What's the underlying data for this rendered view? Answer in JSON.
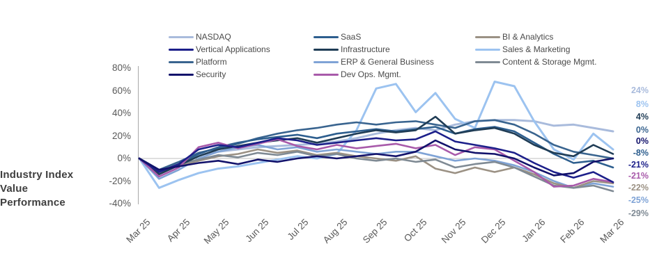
{
  "title": {
    "text": "Industry Index Value Performance"
  },
  "legend": {
    "columns": [
      [
        "NASDAQ",
        "Vertical Applications",
        "Platform",
        "Security"
      ],
      [
        "SaaS",
        "Infrastructure",
        "ERP & General Business",
        "Dev Ops. Mgmt."
      ],
      [
        "BI & Analytics",
        "Sales & Marketing",
        "Content & Storage Mgmt."
      ]
    ]
  },
  "chart_data": {
    "type": "line",
    "title": "Industry Index Value Performance",
    "xlabel": "",
    "ylabel": "",
    "x_unit": "months since Mar 25 (values sampled every 0.5 month)",
    "x_tick_labels": [
      "Mar 25",
      "Apr 25",
      "May 25",
      "Jun 25",
      "Jul 25",
      "Aug 25",
      "Sep 25",
      "Oct 25",
      "Nov 25",
      "Dec 25",
      "Jan 26",
      "Feb 26",
      "Mar 26"
    ],
    "y_ticks": [
      80,
      60,
      40,
      20,
      0,
      -20,
      -40
    ],
    "y_tick_labels": [
      "80%",
      "60%",
      "40%",
      "20%",
      "0%",
      "-20%",
      "-40%"
    ],
    "ylim": [
      -40,
      80
    ],
    "grid": "horizontal zero-line only",
    "legend_position": "top",
    "axis_color": "#a8a8a8",
    "zero_line_color": "#bfbfbf",
    "series": [
      {
        "name": "NASDAQ",
        "slug": "nasdaq",
        "color": "#a9bbdc",
        "end_label": "24%",
        "values": [
          0,
          -13,
          -4,
          3,
          6,
          8,
          10,
          11,
          12,
          13,
          15,
          18,
          22,
          25,
          27,
          25,
          30,
          33,
          34,
          34,
          33,
          29,
          30,
          27,
          24
        ]
      },
      {
        "name": "Vertical Applications",
        "slug": "vertical-applications",
        "color": "#1c1f8a",
        "end_label": "-21%",
        "values": [
          0,
          -12,
          -5,
          8,
          12,
          10,
          14,
          18,
          16,
          12,
          14,
          16,
          18,
          16,
          17,
          24,
          15,
          12,
          9,
          5,
          -4,
          -12,
          -17,
          -12,
          -21
        ]
      },
      {
        "name": "Platform",
        "slug": "platform",
        "color": "#39648f",
        "end_label": "0%",
        "values": [
          0,
          -10,
          -3,
          5,
          9,
          13,
          18,
          22,
          25,
          27,
          30,
          32,
          30,
          32,
          33,
          30,
          27,
          33,
          34,
          30,
          22,
          12,
          6,
          3,
          0
        ]
      },
      {
        "name": "Security",
        "slug": "security",
        "color": "#12126b",
        "end_label": "0%",
        "values": [
          0,
          -10,
          -7,
          -4,
          -2,
          -5,
          -1,
          -3,
          0,
          2,
          0,
          2,
          4,
          2,
          6,
          16,
          8,
          5,
          4,
          0,
          -8,
          -15,
          -13,
          -3,
          0
        ]
      },
      {
        "name": "SaaS",
        "slug": "saas",
        "color": "#2d5e8e",
        "end_label": "-8%",
        "values": [
          0,
          -12,
          -5,
          4,
          10,
          14,
          17,
          19,
          21,
          18,
          22,
          24,
          26,
          24,
          26,
          28,
          22,
          26,
          28,
          24,
          14,
          4,
          -4,
          -2,
          -8
        ]
      },
      {
        "name": "Infrastructure",
        "slug": "infrastructure",
        "color": "#1f3c55",
        "end_label": "4%",
        "values": [
          0,
          -14,
          -6,
          2,
          8,
          11,
          14,
          16,
          18,
          14,
          18,
          22,
          25,
          23,
          25,
          37,
          22,
          25,
          27,
          22,
          12,
          5,
          2,
          12,
          4
        ]
      },
      {
        "name": "ERP & General Business",
        "slug": "erp-general-business",
        "color": "#7fa3d6",
        "end_label": "-25%",
        "values": [
          0,
          -18,
          -10,
          0,
          6,
          10,
          12,
          8,
          10,
          6,
          8,
          6,
          4,
          6,
          6,
          2,
          -2,
          0,
          -2,
          -6,
          -12,
          -20,
          -26,
          -22,
          -25
        ]
      },
      {
        "name": "Dev Ops. Mgmt.",
        "slug": "dev-ops-mgmt",
        "color": "#a85aaa",
        "end_label": "-21%",
        "values": [
          0,
          -16,
          -8,
          10,
          14,
          9,
          13,
          17,
          11,
          8,
          12,
          9,
          11,
          13,
          9,
          12,
          3,
          10,
          8,
          -2,
          -12,
          -25,
          -24,
          -18,
          -21
        ]
      },
      {
        "name": "BI & Analytics",
        "slug": "bi-analytics",
        "color": "#9b9184",
        "end_label": "-22%",
        "values": [
          0,
          -12,
          -6,
          -2,
          2,
          4,
          8,
          5,
          7,
          3,
          5,
          2,
          0,
          -2,
          2,
          -9,
          -13,
          -8,
          -12,
          -8,
          -14,
          -22,
          -26,
          -20,
          -22
        ]
      },
      {
        "name": "Sales & Marketing",
        "slug": "sales-marketing",
        "color": "#9cc3f0",
        "end_label": "8%",
        "values": [
          0,
          -26,
          -19,
          -13,
          -9,
          -7,
          -4,
          -1,
          2,
          0,
          4,
          25,
          62,
          66,
          41,
          58,
          35,
          27,
          68,
          64,
          33,
          8,
          -1,
          22,
          8
        ]
      },
      {
        "name": "Content & Storage Mgmt.",
        "slug": "content-storage-mgmt",
        "color": "#7f8a94",
        "end_label": "-29%",
        "values": [
          0,
          -11,
          -5,
          -1,
          3,
          1,
          5,
          3,
          6,
          2,
          4,
          0,
          -2,
          0,
          -3,
          -1,
          -8,
          -5,
          -3,
          -8,
          -16,
          -24,
          -26,
          -24,
          -29
        ]
      }
    ],
    "right_labels": [
      {
        "series": "NASDAQ",
        "text": "24%"
      },
      {
        "series": "Sales & Marketing",
        "text": "8%"
      },
      {
        "series": "Infrastructure",
        "text": "4%"
      },
      {
        "series": "Platform",
        "text": "0%"
      },
      {
        "series": "Security",
        "text": "0%"
      },
      {
        "series": "SaaS",
        "text": "-8%"
      },
      {
        "series": "Vertical Applications",
        "text": "-21%"
      },
      {
        "series": "Dev Ops. Mgmt.",
        "text": "-21%"
      },
      {
        "series": "BI & Analytics",
        "text": "-22%"
      },
      {
        "series": "ERP & General Business",
        "text": "-25%"
      },
      {
        "series": "Content & Storage Mgmt.",
        "text": "-29%"
      }
    ],
    "draw_order": [
      "NASDAQ",
      "Sales & Marketing",
      "ERP & General Business",
      "BI & Analytics",
      "Content & Storage Mgmt.",
      "Platform",
      "SaaS",
      "Infrastructure",
      "Dev Ops. Mgmt.",
      "Vertical Applications",
      "Security"
    ]
  }
}
